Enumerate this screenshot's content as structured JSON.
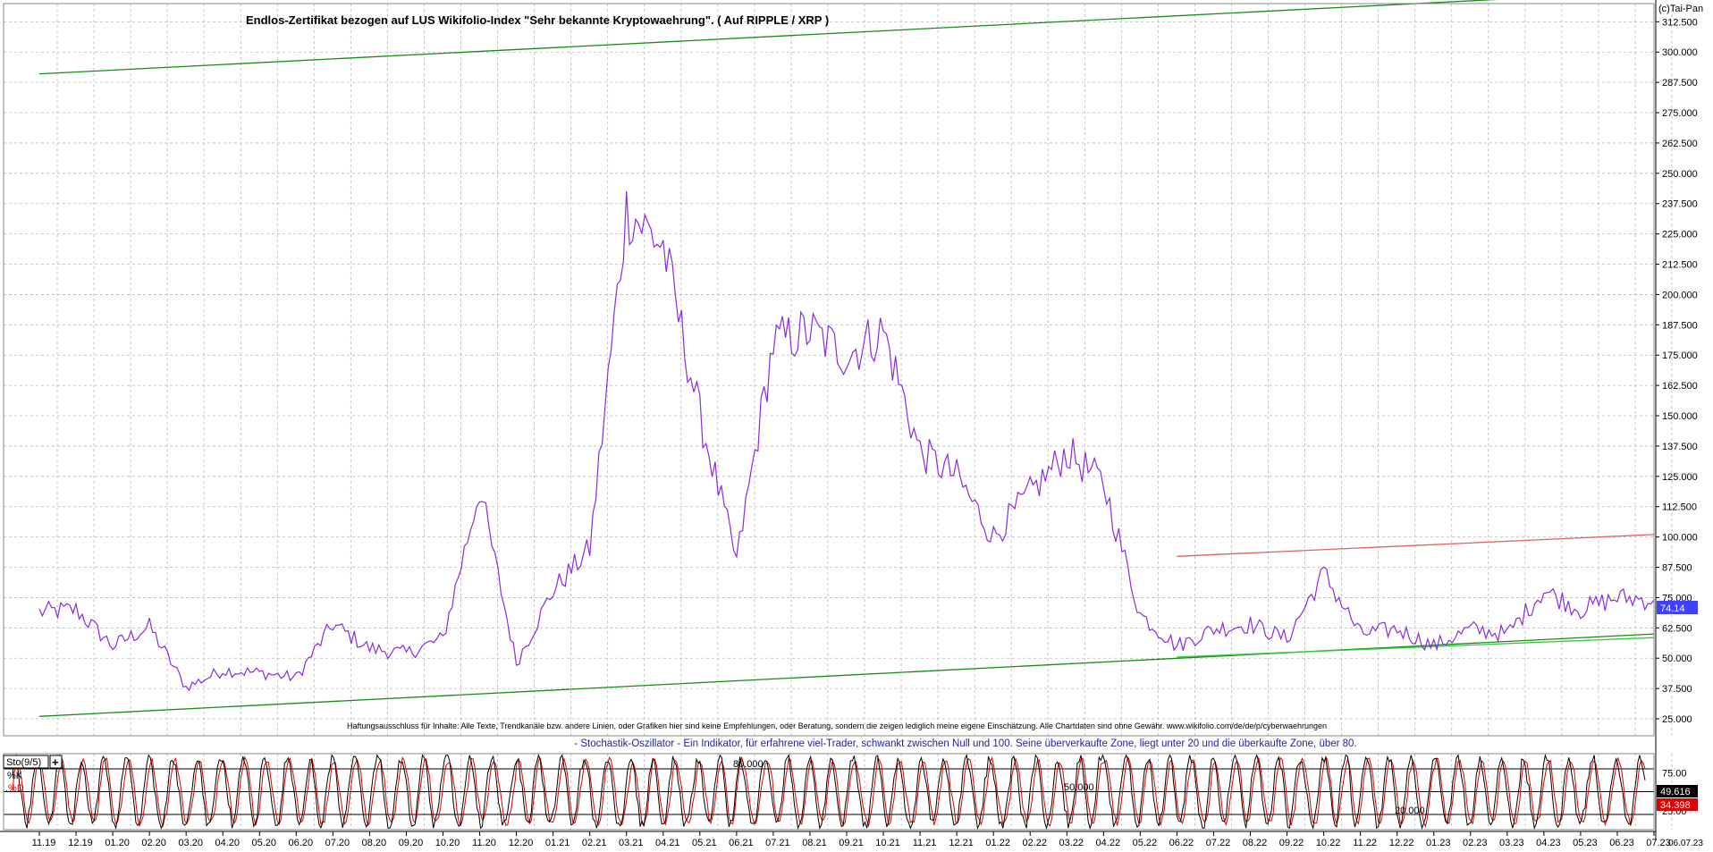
{
  "chart_data": [
    {
      "type": "line",
      "title": "Endlos-Zertifikat bezogen auf LUS Wikifolio-Index \"Sehr bekannte Kryptowaehrung\". ( Auf RIPPLE / XRP )",
      "copyright": "(c)Tai-Pan",
      "disclaimer": "Haftungsausschluss für Inhalte: Alle Texte, Trendkanäle bzw. andere Linien, oder Grafiken hier sind keine Empfehlungen, oder Beratung, sondern die zeigen lediglich meine eigene Einschätzung. Alle Chartdaten sind ohne Gewähr.  www.wikifolio.com/de/de/p/cyberwaehrungen",
      "indicator_note": "- Stochastik-Oszillator - Ein Indikator, für erfahrene viel-Trader, schwankt zwischen Null und 100. Seine überverkaufte Zone, liegt unter 20 und die überkaufte Zone, über 80.",
      "ylim": [
        18,
        320
      ],
      "y_ticks": [
        "25.000",
        "37.500",
        "50.000",
        "62.500",
        "75.000",
        "87.500",
        "100.000",
        "112.500",
        "125.000",
        "137.500",
        "150.000",
        "162.500",
        "175.000",
        "187.500",
        "200.000",
        "212.500",
        "225.000",
        "237.500",
        "250.000",
        "262.500",
        "275.000",
        "287.500",
        "300.000",
        "312.500"
      ],
      "last_value_label": "74.14",
      "line_color": "#8a2be2",
      "x": [
        "11.2019",
        "12.2019",
        "01.2020",
        "02.2020",
        "03.2020",
        "04.2020",
        "05.2020",
        "06.2020",
        "07.2020",
        "08.2020",
        "09.2020",
        "10.2020",
        "11.2020",
        "12.2020",
        "01.2021",
        "02.2021",
        "03.2021",
        "04.2021",
        "05.2021",
        "06.2021",
        "07.2021",
        "08.2021",
        "09.2021",
        "10.2021",
        "11.2021",
        "12.2021",
        "01.2022",
        "02.2022",
        "03.2022",
        "04.2022",
        "05.2022",
        "06.2022",
        "07.2022",
        "08.2022",
        "09.2022",
        "10.2022",
        "11.2022",
        "12.2022",
        "01.2023",
        "02.2023",
        "03.2023",
        "04.2023",
        "05.2023",
        "06.2023",
        "07.2023"
      ],
      "series": [
        {
          "values": [
            69,
            70,
            55,
            63,
            38,
            45,
            44,
            42,
            64,
            54,
            52,
            58,
            120,
            48,
            78,
            95,
            235,
            220,
            150,
            90,
            180,
            185,
            175,
            185,
            135,
            125,
            100,
            118,
            135,
            122,
            68,
            55,
            62,
            64,
            58,
            85,
            60,
            62,
            55,
            62,
            60,
            78,
            70,
            75,
            74
          ]
        }
      ],
      "trendlines": [
        {
          "color": "#1a8a1a",
          "from": [
            "11.2019",
            291
          ],
          "to": [
            "07.2023",
            325
          ]
        },
        {
          "color": "#1a8a1a",
          "from": [
            "11.2019",
            26
          ],
          "to": [
            "07.2023",
            60
          ]
        },
        {
          "color": "#e06060",
          "from": [
            "06.2022",
            92
          ],
          "to": [
            "07.2023",
            101
          ]
        },
        {
          "color": "#33cc33",
          "from": [
            "06.2022",
            50.5
          ],
          "to": [
            "07.2023",
            58.5
          ]
        }
      ],
      "x_tick_labels": [
        "11.19",
        "12.19",
        "01.20",
        "02.20",
        "03.20",
        "04.20",
        "05.20",
        "06.20",
        "07.20",
        "08.20",
        "09.20",
        "10.20",
        "11.20",
        "12.20",
        "01.21",
        "02.21",
        "03.21",
        "04.21",
        "05.21",
        "06.21",
        "07.21",
        "08.21",
        "09.21",
        "10.21",
        "11.21",
        "12.21",
        "01.22",
        "02.22",
        "03.22",
        "04.22",
        "05.22",
        "06.22",
        "07.22",
        "08.22",
        "09.22",
        "10.22",
        "11.22",
        "12.22",
        "01.23",
        "02.23",
        "03.23",
        "04.23",
        "05.23",
        "06.23",
        "07.23"
      ],
      "end_date_label": "06.07.23"
    },
    {
      "type": "line",
      "title": "Sto(9/5)",
      "ylim": [
        0,
        100
      ],
      "y_ticks": [
        "25.00",
        "75.00"
      ],
      "level_labels": [
        "80.000",
        "50.000",
        "20.000"
      ],
      "levels": [
        80,
        50,
        20
      ],
      "current_values": {
        "k": "49.616",
        "d": "34.398"
      },
      "series": [
        {
          "name": "%K",
          "color": "#000000"
        },
        {
          "name": ".%D",
          "color": "#dd0000"
        }
      ],
      "oscillation_cycles": 72
    }
  ]
}
